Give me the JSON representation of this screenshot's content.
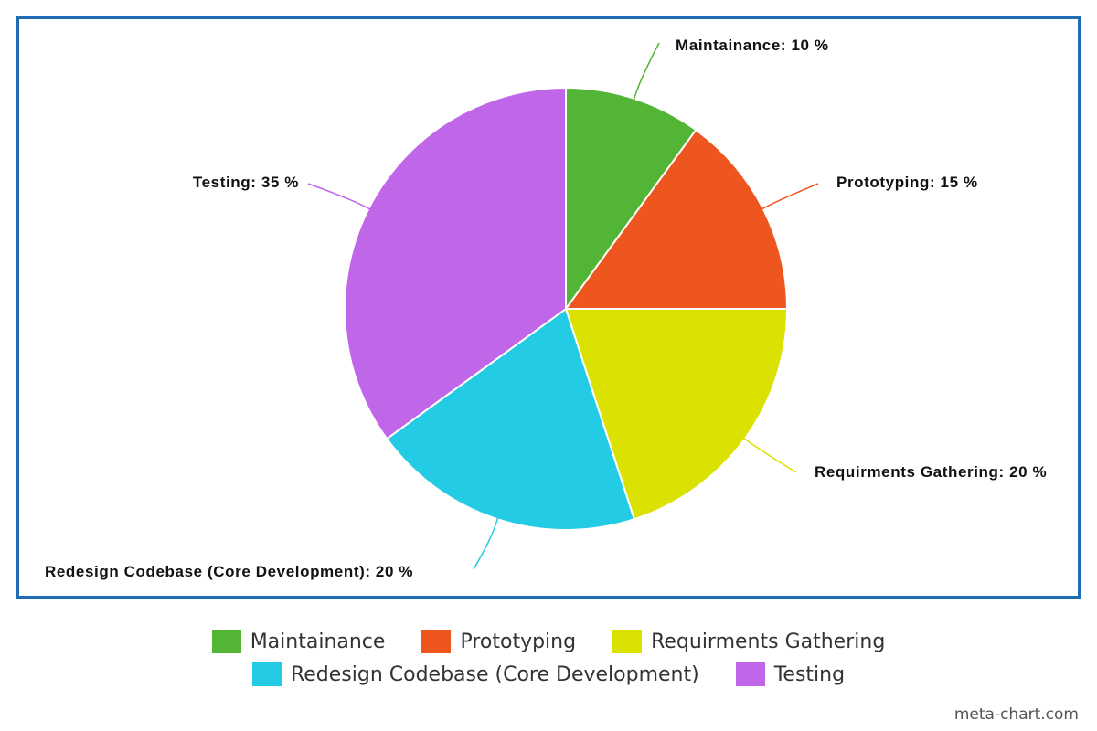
{
  "chart_data": {
    "type": "pie",
    "title": "",
    "categories": [
      "Maintainance",
      "Prototyping",
      "Requirments Gathering",
      "Redesign Codebase (Core Development)",
      "Testing"
    ],
    "values": [
      10,
      15,
      20,
      20,
      35
    ],
    "colors": [
      "#52b535",
      "#ee561f",
      "#dbe100",
      "#24cbe4",
      "#c066e9"
    ],
    "slice_labels": [
      "Maintainance: 10 %",
      "Prototyping: 15 %",
      "Requirments Gathering: 20 %",
      "Redesign Codebase (Core Development): 20 %",
      "Testing: 35 %"
    ],
    "legend_placement": "bottom",
    "frame_color": "#1f6db5"
  },
  "legend": {
    "rows": [
      [
        {
          "label": "Maintainance",
          "color": "#52b535"
        },
        {
          "label": "Prototyping",
          "color": "#ee561f"
        },
        {
          "label": "Requirments Gathering",
          "color": "#dbe100"
        }
      ],
      [
        {
          "label": "Redesign Codebase (Core Development)",
          "color": "#24cbe4"
        },
        {
          "label": "Testing",
          "color": "#c066e9"
        }
      ]
    ]
  },
  "watermark": "meta-chart.com"
}
